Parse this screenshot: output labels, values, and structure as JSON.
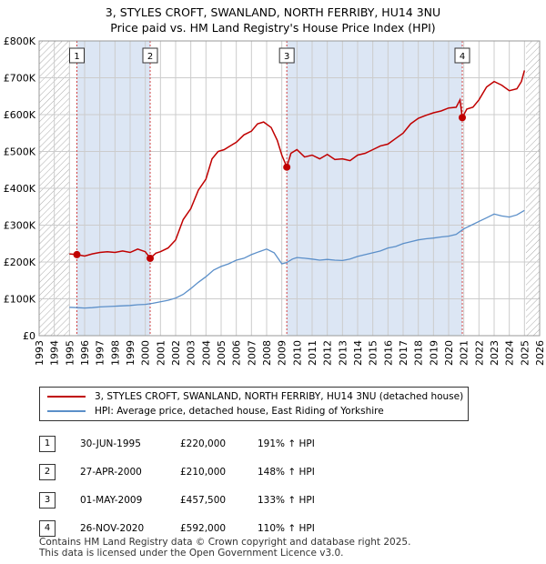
{
  "title_line1": "3, STYLES CROFT, SWANLAND, NORTH FERRIBY, HU14 3NU",
  "title_line2": "Price paid vs. HM Land Registry's House Price Index (HPI)",
  "colors": {
    "property": "#c00000",
    "hpi": "#5b8fc9",
    "band": "#dce6f4",
    "marker_line": "#d04040",
    "grid": "#cccccc",
    "hatch": "#aaaaaa"
  },
  "legend": {
    "property_label": "3, STYLES CROFT, SWANLAND, NORTH FERRIBY, HU14 3NU (detached house)",
    "hpi_label": "HPI: Average price, detached house, East Riding of Yorkshire"
  },
  "sales": [
    {
      "num": "1",
      "date": "30-JUN-1995",
      "price": "£220,000",
      "hpi": "191% ↑ HPI"
    },
    {
      "num": "2",
      "date": "27-APR-2000",
      "price": "£210,000",
      "hpi": "148% ↑ HPI"
    },
    {
      "num": "3",
      "date": "01-MAY-2009",
      "price": "£457,500",
      "hpi": "133% ↑ HPI"
    },
    {
      "num": "4",
      "date": "26-NOV-2020",
      "price": "£592,000",
      "hpi": "110% ↑ HPI"
    }
  ],
  "footer_line1": "Contains HM Land Registry data © Crown copyright and database right 2025.",
  "footer_line2": "This data is licensed under the Open Government Licence v3.0.",
  "chart_data": {
    "type": "line",
    "xlim": [
      1993,
      2026
    ],
    "ylim": [
      0,
      800000
    ],
    "x_ticks": [
      "1993",
      "1994",
      "1995",
      "1996",
      "1997",
      "1998",
      "1999",
      "2000",
      "2001",
      "2002",
      "2003",
      "2004",
      "2005",
      "2006",
      "2007",
      "2008",
      "2009",
      "2010",
      "2011",
      "2012",
      "2013",
      "2014",
      "2015",
      "2016",
      "2017",
      "2018",
      "2019",
      "2020",
      "2021",
      "2022",
      "2023",
      "2024",
      "2025",
      "2026"
    ],
    "y_ticks": [
      {
        "value": 0,
        "label": "£0"
      },
      {
        "value": 100000,
        "label": "£100K"
      },
      {
        "value": 200000,
        "label": "£200K"
      },
      {
        "value": 300000,
        "label": "£300K"
      },
      {
        "value": 400000,
        "label": "£400K"
      },
      {
        "value": 500000,
        "label": "£500K"
      },
      {
        "value": 600000,
        "label": "£600K"
      },
      {
        "value": 700000,
        "label": "£700K"
      },
      {
        "value": 800000,
        "label": "£800K"
      }
    ],
    "hatched_ranges": [
      [
        1993,
        1995.0
      ],
      [
        2025.1,
        2026
      ]
    ],
    "shaded_ranges": [
      [
        1995.49,
        2000.32
      ],
      [
        2009.33,
        2020.9
      ]
    ],
    "series": [
      {
        "name": "3, STYLES CROFT, SWANLAND, NORTH FERRIBY, HU14 3NU (detached house)",
        "key": "property",
        "points": [
          [
            1995.0,
            222000
          ],
          [
            1995.49,
            220000
          ],
          [
            1996.0,
            216000
          ],
          [
            1996.5,
            222000
          ],
          [
            1997.0,
            226000
          ],
          [
            1997.5,
            228000
          ],
          [
            1998.0,
            226000
          ],
          [
            1998.5,
            230000
          ],
          [
            1999.0,
            226000
          ],
          [
            1999.5,
            235000
          ],
          [
            2000.0,
            228000
          ],
          [
            2000.32,
            210000
          ],
          [
            2000.7,
            224000
          ],
          [
            2001.0,
            228000
          ],
          [
            2001.5,
            238000
          ],
          [
            2002.0,
            260000
          ],
          [
            2002.5,
            315000
          ],
          [
            2003.0,
            345000
          ],
          [
            2003.5,
            395000
          ],
          [
            2004.0,
            425000
          ],
          [
            2004.4,
            480000
          ],
          [
            2004.8,
            500000
          ],
          [
            2005.2,
            505000
          ],
          [
            2005.6,
            515000
          ],
          [
            2006.0,
            525000
          ],
          [
            2006.5,
            545000
          ],
          [
            2007.0,
            555000
          ],
          [
            2007.4,
            575000
          ],
          [
            2007.8,
            580000
          ],
          [
            2008.3,
            565000
          ],
          [
            2008.7,
            530000
          ],
          [
            2009.0,
            490000
          ],
          [
            2009.33,
            457500
          ],
          [
            2009.6,
            495000
          ],
          [
            2010.0,
            505000
          ],
          [
            2010.5,
            485000
          ],
          [
            2011.0,
            490000
          ],
          [
            2011.5,
            480000
          ],
          [
            2012.0,
            492000
          ],
          [
            2012.5,
            478000
          ],
          [
            2013.0,
            480000
          ],
          [
            2013.5,
            475000
          ],
          [
            2014.0,
            490000
          ],
          [
            2014.5,
            495000
          ],
          [
            2015.0,
            505000
          ],
          [
            2015.5,
            515000
          ],
          [
            2016.0,
            520000
          ],
          [
            2016.5,
            535000
          ],
          [
            2017.0,
            550000
          ],
          [
            2017.5,
            575000
          ],
          [
            2018.0,
            590000
          ],
          [
            2018.5,
            598000
          ],
          [
            2019.0,
            605000
          ],
          [
            2019.5,
            610000
          ],
          [
            2020.0,
            618000
          ],
          [
            2020.5,
            620000
          ],
          [
            2020.75,
            640000
          ],
          [
            2020.9,
            592000
          ],
          [
            2021.2,
            615000
          ],
          [
            2021.6,
            620000
          ],
          [
            2022.0,
            640000
          ],
          [
            2022.5,
            675000
          ],
          [
            2023.0,
            690000
          ],
          [
            2023.5,
            680000
          ],
          [
            2024.0,
            665000
          ],
          [
            2024.5,
            670000
          ],
          [
            2024.8,
            690000
          ],
          [
            2025.0,
            720000
          ]
        ]
      },
      {
        "name": "HPI: Average price, detached house, East Riding of Yorkshire",
        "key": "hpi",
        "points": [
          [
            1995.0,
            77000
          ],
          [
            1995.5,
            76000
          ],
          [
            1996.0,
            75000
          ],
          [
            1996.5,
            76000
          ],
          [
            1997.0,
            78000
          ],
          [
            1997.5,
            79000
          ],
          [
            1998.0,
            80000
          ],
          [
            1998.5,
            81000
          ],
          [
            1999.0,
            82000
          ],
          [
            1999.5,
            84000
          ],
          [
            2000.0,
            85000
          ],
          [
            2000.5,
            88000
          ],
          [
            2001.0,
            92000
          ],
          [
            2001.5,
            96000
          ],
          [
            2002.0,
            102000
          ],
          [
            2002.5,
            112000
          ],
          [
            2003.0,
            128000
          ],
          [
            2003.5,
            145000
          ],
          [
            2004.0,
            160000
          ],
          [
            2004.5,
            178000
          ],
          [
            2005.0,
            188000
          ],
          [
            2005.5,
            195000
          ],
          [
            2006.0,
            205000
          ],
          [
            2006.5,
            210000
          ],
          [
            2007.0,
            220000
          ],
          [
            2007.5,
            228000
          ],
          [
            2008.0,
            235000
          ],
          [
            2008.5,
            225000
          ],
          [
            2009.0,
            195000
          ],
          [
            2009.3,
            198000
          ],
          [
            2009.7,
            208000
          ],
          [
            2010.0,
            212000
          ],
          [
            2010.5,
            210000
          ],
          [
            2011.0,
            208000
          ],
          [
            2011.5,
            205000
          ],
          [
            2012.0,
            207000
          ],
          [
            2012.5,
            205000
          ],
          [
            2013.0,
            204000
          ],
          [
            2013.5,
            208000
          ],
          [
            2014.0,
            215000
          ],
          [
            2014.5,
            220000
          ],
          [
            2015.0,
            225000
          ],
          [
            2015.5,
            230000
          ],
          [
            2016.0,
            238000
          ],
          [
            2016.5,
            242000
          ],
          [
            2017.0,
            250000
          ],
          [
            2017.5,
            255000
          ],
          [
            2018.0,
            260000
          ],
          [
            2018.5,
            263000
          ],
          [
            2019.0,
            265000
          ],
          [
            2019.5,
            268000
          ],
          [
            2020.0,
            270000
          ],
          [
            2020.5,
            275000
          ],
          [
            2021.0,
            290000
          ],
          [
            2021.5,
            300000
          ],
          [
            2022.0,
            310000
          ],
          [
            2022.5,
            320000
          ],
          [
            2023.0,
            330000
          ],
          [
            2023.5,
            325000
          ],
          [
            2024.0,
            322000
          ],
          [
            2024.5,
            328000
          ],
          [
            2025.0,
            340000
          ]
        ]
      }
    ],
    "markers": [
      {
        "num": "1",
        "x": 1995.49,
        "y": 220000
      },
      {
        "num": "2",
        "x": 2000.32,
        "y": 210000
      },
      {
        "num": "3",
        "x": 2009.33,
        "y": 457500
      },
      {
        "num": "4",
        "x": 2020.9,
        "y": 592000
      }
    ]
  }
}
